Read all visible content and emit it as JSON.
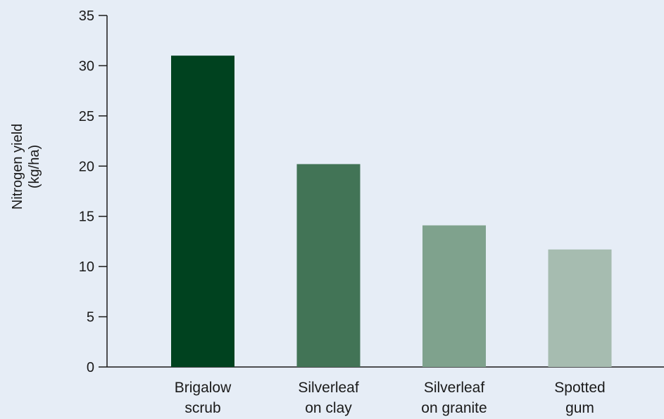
{
  "chart_data": {
    "type": "bar",
    "categories": [
      [
        "Brigalow",
        "scrub"
      ],
      [
        "Silverleaf",
        "on clay"
      ],
      [
        "Silverleaf",
        "on granite"
      ],
      [
        "Spotted",
        "gum"
      ]
    ],
    "values": [
      31.0,
      20.2,
      14.1,
      11.7
    ],
    "bar_colors": [
      "#00421f",
      "#427456",
      "#7fa28d",
      "#a6bcb0"
    ],
    "ylabel": [
      "Nitrogen yield",
      "(kg/ha)"
    ],
    "ylim": [
      0,
      35
    ],
    "yticks": [
      0,
      5,
      10,
      15,
      20,
      25,
      30,
      35
    ],
    "grid": false
  }
}
